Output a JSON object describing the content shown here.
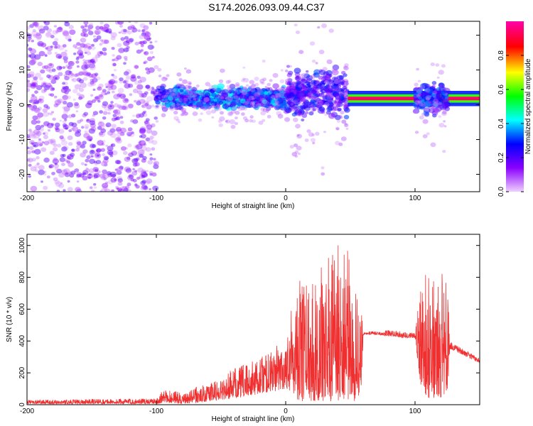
{
  "title": "S174.2026.093.09.44.C37",
  "chart_data": [
    {
      "type": "scatter",
      "name": "spectrogram",
      "title": "S174.2026.093.09.44.C37",
      "xlabel": "Height of straight line (km)",
      "ylabel": "Frequency (Hz)",
      "xlim": [
        -200,
        150
      ],
      "ylim": [
        -25,
        24
      ],
      "x_ticks": [
        -200,
        -100,
        0,
        100
      ],
      "y_ticks": [
        -20,
        -10,
        0,
        10,
        20
      ],
      "colorbar": {
        "label": "Normalized spectral amplitude",
        "range": [
          0,
          1
        ],
        "ticks": [
          "0.0",
          "0.2",
          "0.4",
          "0.6",
          "0.8"
        ],
        "tick_values": [
          0.0,
          0.2,
          0.4,
          0.6,
          0.8
        ],
        "colors": [
          "#f0d0ff",
          "#8a00ff",
          "#0000ff",
          "#00ffff",
          "#00ff00",
          "#ffff00",
          "#ff0000",
          "#ff00aa"
        ]
      },
      "regions": [
        {
          "name": "noise",
          "x": [
            -200,
            -100
          ],
          "y": [
            -25,
            24
          ],
          "amp": 0.15
        },
        {
          "name": "band-1",
          "x": [
            -100,
            0
          ],
          "y_center": 2,
          "y_spread": 4,
          "amp": 0.35
        },
        {
          "name": "band-2",
          "x": [
            0,
            48
          ],
          "y_center": 3,
          "y_spread": 9,
          "amp": 0.25
        },
        {
          "name": "tone-line",
          "x": [
            48,
            150
          ],
          "y": 1.8,
          "amp": 0.95
        },
        {
          "name": "band-3",
          "x": [
            100,
            125
          ],
          "y_center": 2,
          "y_spread": 6,
          "amp": 0.3
        }
      ]
    },
    {
      "type": "line",
      "name": "snr",
      "xlabel": "Height of straight line (km)",
      "ylabel": "SNR (10 * v/v)",
      "xlim": [
        -200,
        150
      ],
      "ylim": [
        0,
        1070
      ],
      "x_ticks": [
        -200,
        -100,
        0,
        100
      ],
      "y_ticks": [
        0,
        200,
        400,
        600,
        800,
        1000
      ],
      "color": "#f03030",
      "envelope": {
        "x": [
          -200,
          -150,
          -100,
          -95,
          -85,
          -80,
          -70,
          -60,
          -50,
          -40,
          -30,
          -20,
          -10,
          0,
          5,
          10,
          20,
          30,
          40,
          45,
          50,
          55,
          58,
          60,
          65,
          70,
          80,
          90,
          100,
          105,
          110,
          120,
          125,
          127,
          130,
          140,
          150
        ],
        "low": [
          5,
          5,
          5,
          10,
          10,
          5,
          10,
          20,
          30,
          40,
          50,
          70,
          80,
          100,
          80,
          20,
          20,
          20,
          20,
          20,
          20,
          20,
          30,
          440,
          440,
          440,
          430,
          420,
          420,
          80,
          40,
          30,
          50,
          350,
          340,
          300,
          260
        ],
        "high": [
          30,
          35,
          40,
          90,
          95,
          60,
          110,
          130,
          170,
          230,
          260,
          300,
          350,
          420,
          700,
          780,
          820,
          900,
          1010,
          1060,
          900,
          700,
          650,
          460,
          460,
          460,
          470,
          460,
          450,
          800,
          850,
          830,
          820,
          400,
          380,
          340,
          290
        ]
      }
    }
  ]
}
